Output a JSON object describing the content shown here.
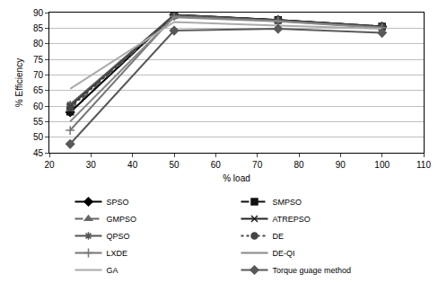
{
  "chart_data": {
    "type": "line",
    "x_label": "% load",
    "y_label": "% Efficiency",
    "x": [
      25,
      50,
      75,
      100
    ],
    "xlim": [
      20,
      110
    ],
    "xticks": [
      20,
      30,
      40,
      50,
      60,
      70,
      80,
      90,
      100,
      110
    ],
    "ylim": [
      45,
      90
    ],
    "yticks": [
      45,
      50,
      55,
      60,
      65,
      70,
      75,
      80,
      85,
      90
    ],
    "grid": true,
    "legend": "bottom",
    "series": [
      {
        "name": "SPSO",
        "color": "#000000",
        "marker": "diamond",
        "line_style": "solid",
        "values": [
          58.0,
          89.3,
          87.6,
          85.5
        ]
      },
      {
        "name": "SMPSO",
        "color": "#111111",
        "marker": "square",
        "line_style": "dash",
        "values": [
          58.2,
          89.2,
          87.6,
          85.5
        ]
      },
      {
        "name": "GMPSO",
        "color": "#666666",
        "marker": "triangle",
        "line_style": "dash",
        "values": [
          59.0,
          89.1,
          87.5,
          85.4
        ]
      },
      {
        "name": "ATREPSO",
        "color": "#222222",
        "marker": "x",
        "line_style": "solid",
        "values": [
          60.0,
          89.3,
          87.6,
          85.5
        ]
      },
      {
        "name": "QPSO",
        "color": "#555555",
        "marker": "asterisk",
        "line_style": "solid",
        "values": [
          60.5,
          89.2,
          87.5,
          85.4
        ]
      },
      {
        "name": "DE",
        "color": "#444444",
        "marker": "circle",
        "line_style": "dot",
        "values": [
          59.5,
          89.0,
          87.4,
          85.3
        ]
      },
      {
        "name": "LXDE",
        "color": "#777777",
        "marker": "cross",
        "line_style": "solid",
        "values": [
          52.2,
          88.8,
          87.3,
          85.2
        ]
      },
      {
        "name": "DE-QI",
        "color": "#888888",
        "marker": "none",
        "line_style": "solid",
        "values": [
          55.0,
          88.5,
          87.2,
          85.1
        ]
      },
      {
        "name": "GA",
        "color": "#aaaaaa",
        "marker": "none",
        "line_style": "solid",
        "values": [
          65.5,
          87.0,
          85.8,
          84.8
        ]
      },
      {
        "name": "Torque guage method",
        "color": "#595959",
        "marker": "diamond",
        "line_style": "solid",
        "values": [
          47.8,
          84.2,
          84.8,
          83.5
        ]
      }
    ]
  }
}
